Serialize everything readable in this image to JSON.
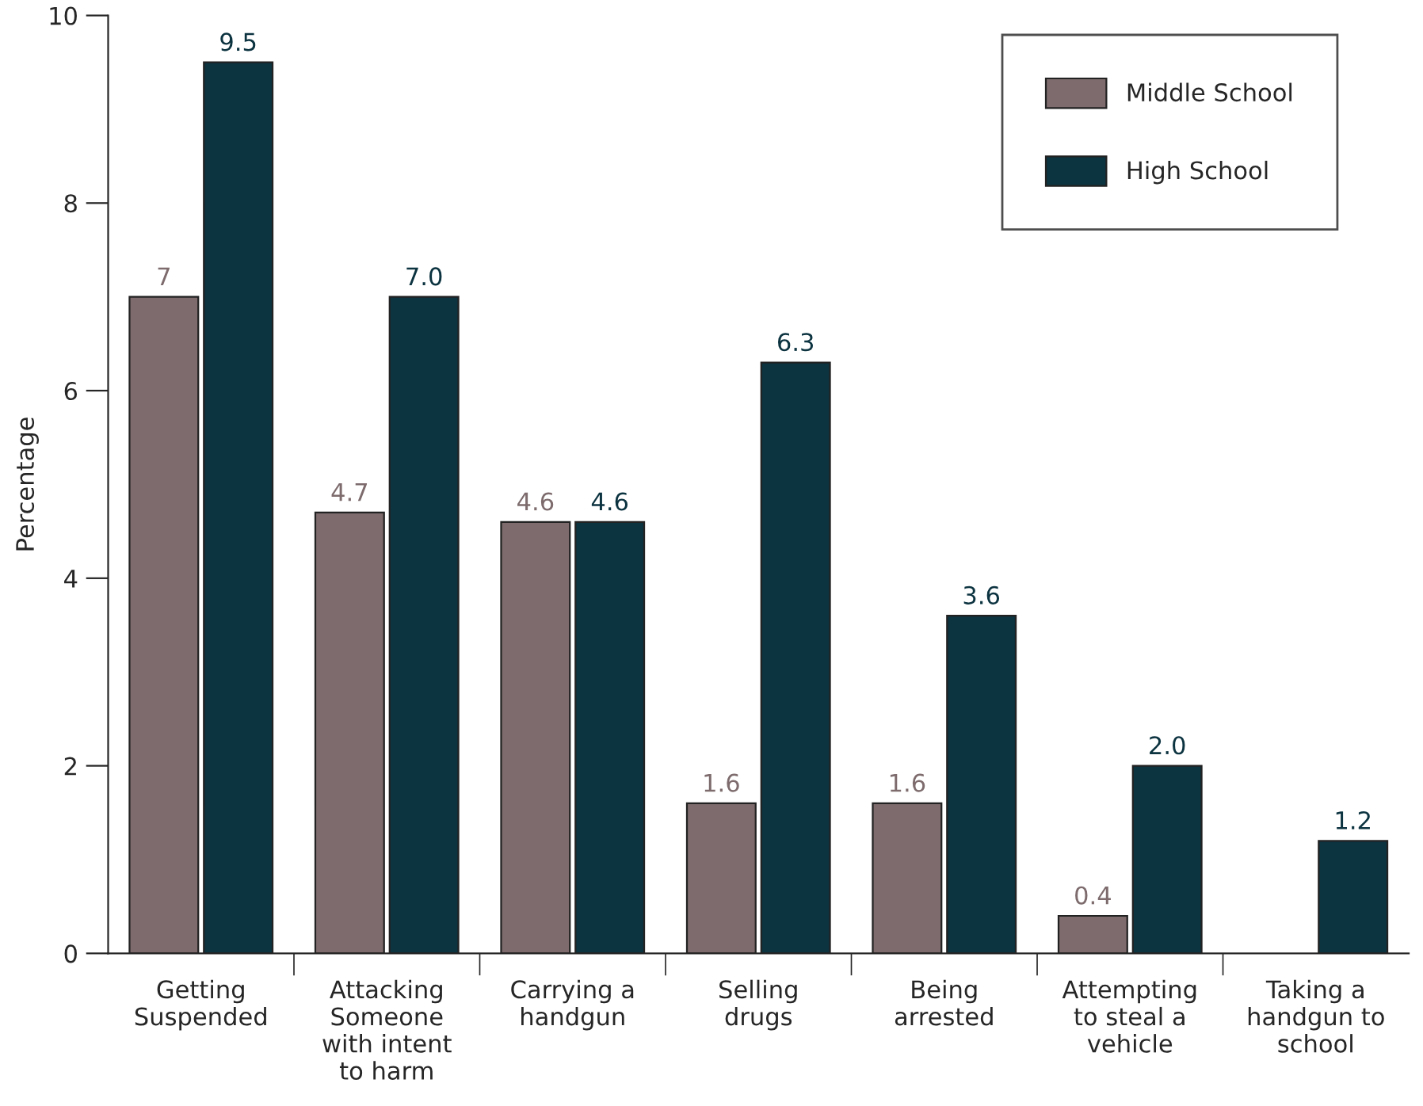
{
  "chart_data": {
    "type": "bar",
    "ylabel": "Percentage",
    "categories": [
      "Getting\nSuspended",
      "Attacking\nSomeone\nwith intent\nto harm",
      "Carrying a\nhandgun",
      "Selling\ndrugs",
      "Being\narrested",
      "Attempting\nto steal a\nvehicle",
      "Taking a\nhandgun to\nschool"
    ],
    "series": [
      {
        "name": "Middle School",
        "color": "#7d6b6d",
        "values": [
          7,
          4.7,
          4.6,
          1.6,
          1.6,
          0.4,
          null
        ],
        "value_labels": [
          "7",
          "4.7",
          "4.6",
          "1.6",
          "1.6",
          "0.4",
          null
        ]
      },
      {
        "name": "High School",
        "color": "#0c3340",
        "values": [
          9.5,
          7.0,
          4.6,
          6.3,
          3.6,
          2.0,
          1.2
        ],
        "value_labels": [
          "9.5",
          "7.0",
          "4.6",
          "6.3",
          "3.6",
          "2.0",
          "1.2"
        ]
      }
    ],
    "ylim": [
      0,
      10
    ],
    "yticks": [
      0,
      2,
      4,
      6,
      8,
      10
    ],
    "grid": false,
    "legend": "top right"
  }
}
